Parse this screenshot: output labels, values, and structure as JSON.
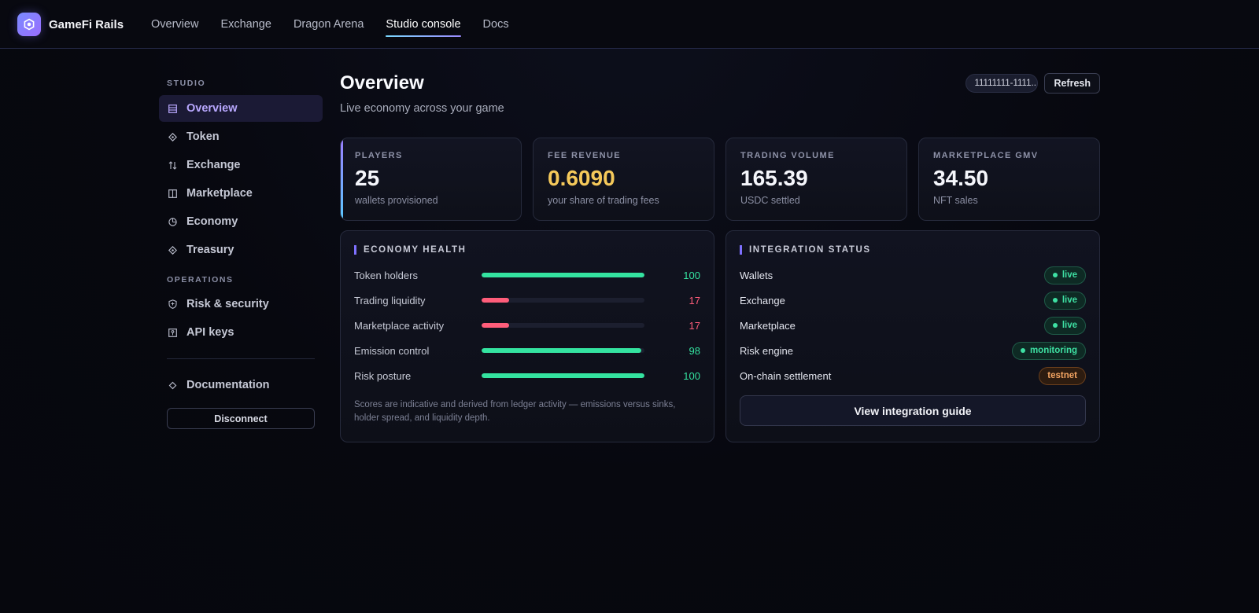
{
  "app": {
    "name": "GameFi Rails",
    "logo_icon": "hexagon-logo-icon"
  },
  "nav": {
    "items": [
      {
        "label": "Overview",
        "active": false
      },
      {
        "label": "Exchange",
        "active": false
      },
      {
        "label": "Dragon Arena",
        "active": false
      },
      {
        "label": "Studio console",
        "active": true
      },
      {
        "label": "Docs",
        "active": false
      }
    ]
  },
  "sidebar": {
    "studio_heading": "STUDIO",
    "studio_items": [
      {
        "label": "Overview",
        "icon": "list-icon",
        "active": true
      },
      {
        "label": "Token",
        "icon": "diamond-icon",
        "active": false
      },
      {
        "label": "Exchange",
        "icon": "swap-icon",
        "active": false
      },
      {
        "label": "Marketplace",
        "icon": "columns-icon",
        "active": false
      },
      {
        "label": "Economy",
        "icon": "pie-icon",
        "active": false
      },
      {
        "label": "Treasury",
        "icon": "diamond-icon",
        "active": false
      }
    ],
    "operations_heading": "OPERATIONS",
    "operations_items": [
      {
        "label": "Risk & security",
        "icon": "shield-icon"
      },
      {
        "label": "API keys",
        "icon": "key-icon"
      }
    ],
    "documentation_label": "Documentation",
    "disconnect_label": "Disconnect"
  },
  "header": {
    "title": "Overview",
    "subtitle": "Live economy across your game",
    "studio_id": "11111111-1111...",
    "refresh_label": "Refresh"
  },
  "stats": [
    {
      "label": "PLAYERS",
      "value": "25",
      "sub": "wallets provisioned"
    },
    {
      "label": "FEE REVENUE",
      "value": "0.6090",
      "sub": "your share of trading fees"
    },
    {
      "label": "TRADING VOLUME",
      "value": "165.39",
      "sub": "USDC settled"
    },
    {
      "label": "MARKETPLACE GMV",
      "value": "34.50",
      "sub": "NFT sales"
    }
  ],
  "economy_health": {
    "title": "ECONOMY HEALTH",
    "rows": [
      {
        "label": "Token holders",
        "value": 100,
        "display": "100",
        "status_color": "#34e3a0"
      },
      {
        "label": "Trading liquidity",
        "value": 17,
        "display": "17",
        "status_color": "#ff5d7a"
      },
      {
        "label": "Marketplace activity",
        "value": 17,
        "display": "17",
        "status_color": "#ff5d7a"
      },
      {
        "label": "Emission control",
        "value": 98,
        "display": "98",
        "status_color": "#34e3a0"
      },
      {
        "label": "Risk posture",
        "value": 100,
        "display": "100",
        "status_color": "#34e3a0"
      }
    ],
    "note": "Scores are indicative and derived from ledger activity — emissions versus sinks, holder spread, and liquidity depth."
  },
  "integration_status": {
    "title": "INTEGRATION STATUS",
    "rows": [
      {
        "label": "Wallets",
        "status": "live",
        "dot": true
      },
      {
        "label": "Exchange",
        "status": "live",
        "dot": true
      },
      {
        "label": "Marketplace",
        "status": "live",
        "dot": true
      },
      {
        "label": "Risk engine",
        "status": "monitoring",
        "dot": true
      },
      {
        "label": "On-chain settlement",
        "status": "testnet",
        "dot": false
      }
    ],
    "guide_label": "View integration guide"
  }
}
